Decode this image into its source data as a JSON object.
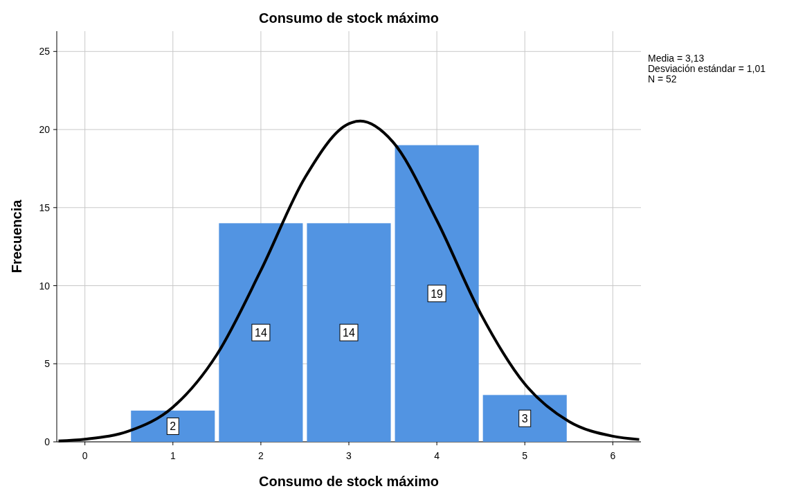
{
  "chart_data": {
    "type": "histogram",
    "title": "Consumo de stock máximo",
    "xlabel": "Consumo de stock máximo",
    "ylabel": "Frecuencia",
    "bins": [
      0.5,
      1.5,
      2.5,
      3.5,
      4.5,
      5.5
    ],
    "values": [
      2,
      14,
      14,
      19,
      3
    ],
    "color": "#5294e2",
    "value_labels": [
      "2",
      "14",
      "14",
      "19",
      "3"
    ],
    "series": [
      {
        "type": "line",
        "color": "#000000",
        "x": [
          -0.3,
          0,
          0.5,
          1,
          1.5,
          2,
          2.5,
          3,
          3.13,
          3.5,
          4,
          4.5,
          5,
          5.5,
          6,
          6.3
        ],
        "values": [
          0.06,
          0.17,
          0.69,
          2.22,
          5.59,
          10.98,
          16.91,
          20.37,
          20.54,
          19.21,
          14.18,
          8.19,
          3.7,
          1.31,
          0.36,
          0.15
        ]
      }
    ],
    "xlim": [
      -0.32,
      6.32
    ],
    "xticks": [
      0,
      1,
      2,
      3,
      4,
      5,
      6
    ],
    "ylim": [
      0,
      26.3
    ],
    "yticks": [
      0,
      5,
      10,
      15,
      20,
      25
    ],
    "grid": true,
    "annotations": [
      "Media = 3,13",
      "Desviación estándar = 1,01",
      "N = 52"
    ]
  }
}
